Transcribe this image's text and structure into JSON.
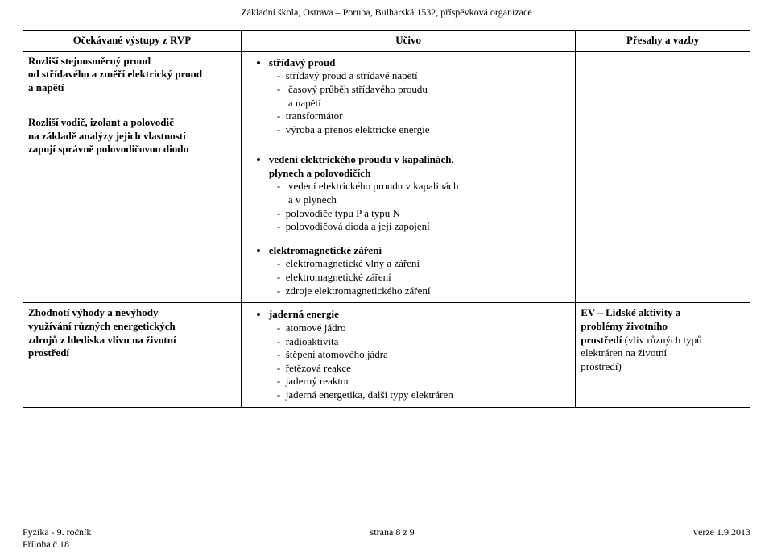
{
  "header_org": "Základní škola, Ostrava – Poruba, Bulharská 1532, příspěvková organizace",
  "columns": {
    "c1": "Očekávané výstupy z RVP",
    "c2": "Učivo",
    "c3": "Přesahy a vazby"
  },
  "row1": {
    "left_block1_l1": "Rozliší stejnosměrný proud",
    "left_block1_l2": "od střídavého a změří elektrický proud",
    "left_block1_l3": "a napětí",
    "left_block2_l1": "Rozliší vodič, izolant a polovodič",
    "left_block2_l2": "na základě analýzy jejich vlastností",
    "left_block2_l3": "zapojí správně polovodičovou diodu",
    "mid_g1_head": "střídavý proud",
    "mid_g1_i1": "střídavý proud a střídavé napětí",
    "mid_g1_i2a": "časový průběh střídavého proudu",
    "mid_g1_i2b": "a napětí",
    "mid_g1_i3": "transformátor",
    "mid_g1_i4": "výroba a přenos elektrické energie",
    "mid_g2_head_a": "vedení elektrického proudu v kapalinách,",
    "mid_g2_head_b": "plynech a polovodičích",
    "mid_g2_i1a": "vedení elektrického proudu v kapalinách",
    "mid_g2_i1b": "a v plynech",
    "mid_g2_i2": "polovodiče typu P a typu N",
    "mid_g2_i3": "polovodičová dioda a její zapojení"
  },
  "row2": {
    "mid_g3_head": "elektromagnetické záření",
    "mid_g3_i1": "elektromagnetické vlny a záření",
    "mid_g3_i2": "elektromagnetické záření",
    "mid_g3_i3": "zdroje elektromagnetického záření"
  },
  "row3": {
    "left_l1": "Zhodnotí výhody a nevýhody",
    "left_l2": "využívání různých energetických",
    "left_l3": "zdrojů z hlediska vlivu na životní",
    "left_l4": "prostředí",
    "mid_g4_head": "jaderná energie",
    "mid_g4_i1": "atomové jádro",
    "mid_g4_i2": "radioaktivita",
    "mid_g4_i3": "štěpení  atomového jádra",
    "mid_g4_i4": "řetězová reakce",
    "mid_g4_i5": "jaderný reaktor",
    "mid_g4_i6": "jaderná energetika, další typy elektráren",
    "right_l1": "EV – Lidské aktivity a",
    "right_l2": "problémy životního",
    "right_l3a": "prostředí",
    "right_l3b": " (vliv různých typů",
    "right_l4": "elektráren na životní",
    "right_l5": "prostředí)"
  },
  "footer": {
    "left_l1": "Fyzika - 9. ročník",
    "left_l2": "Příloha č.18",
    "center": "strana 8 z 9",
    "right": "verze 1.9.2013"
  }
}
